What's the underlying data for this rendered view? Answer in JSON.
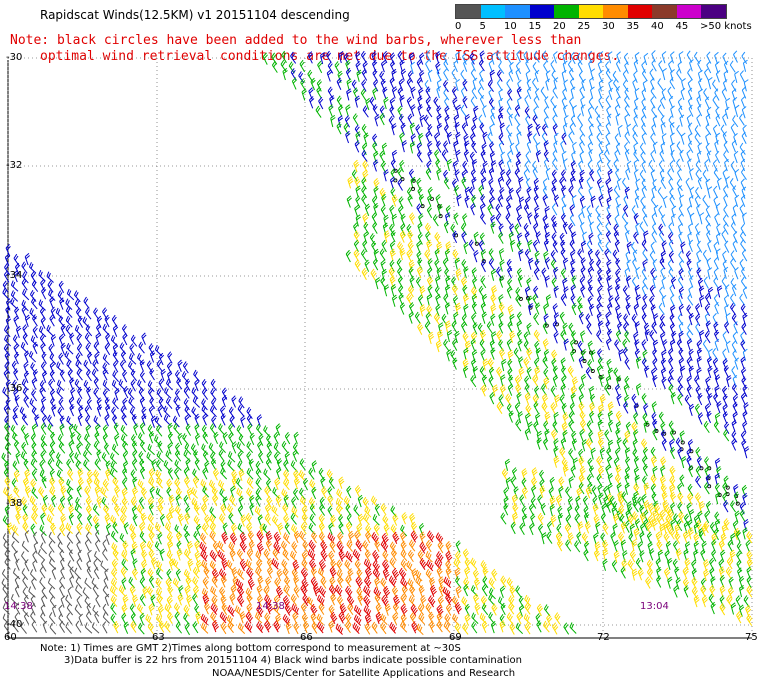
{
  "title": "Rapidscat Winds(12.5KM) v1 20151104 descending",
  "note": {
    "line1": "Note: black circles have been added to the wind barbs, wherever less than",
    "line2": "optimal wind retrieval conditions are met due to the ISS attitude changes."
  },
  "legend": {
    "ticks": [
      "0",
      "5",
      "10",
      "15",
      "20",
      "25",
      "30",
      "35",
      "40",
      "45",
      ">50 knots"
    ],
    "colors": [
      "#555555",
      "#00bfff",
      "#1e90ff",
      "#0000cd",
      "#00b400",
      "#ffdd00",
      "#ff8c00",
      "#e00000",
      "#8b3a2a",
      "#cc00cc",
      "#4b0082"
    ]
  },
  "axes": {
    "lat_labels": [
      "-30",
      "-32",
      "-34",
      "-36",
      "-38",
      "-40"
    ],
    "lon_labels": [
      "60",
      "63",
      "66",
      "69",
      "72",
      "75"
    ]
  },
  "times": [
    "14:38",
    "14:38",
    "13:04"
  ],
  "footer": {
    "line1": "Note: 1) Times are GMT 2)Times along bottom correspond to measurement at ~30S",
    "line2": "3)Data buffer is 22 hrs from 20151104 4) Black wind barbs indicate possible contamination",
    "line3": "NOAA/NESDIS/Center for Satellite Applications and Research"
  }
}
